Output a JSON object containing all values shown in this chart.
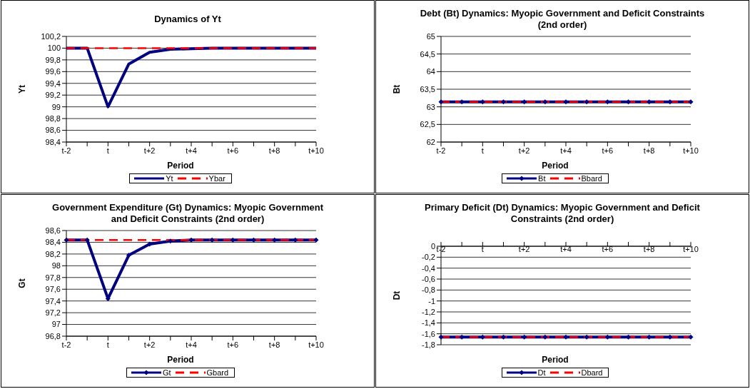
{
  "chart_data": [
    {
      "type": "line",
      "title": "Dynamics of Yt",
      "xlabel": "Period",
      "ylabel": "Yt",
      "categories": [
        "t-2",
        null,
        "t",
        null,
        "t+2",
        null,
        "t+4",
        null,
        "t+6",
        null,
        "t+8",
        null,
        "t+10"
      ],
      "series": [
        {
          "name": "Yt",
          "color": "#000080",
          "values": [
            100,
            100,
            99,
            99.73,
            99.93,
            99.98,
            99.99,
            100,
            100,
            100,
            100,
            100,
            100
          ]
        },
        {
          "name": "Ybar",
          "color": "#ff0000",
          "line_style": "dashed",
          "values": [
            100,
            100,
            100,
            100,
            100,
            100,
            100,
            100,
            100,
            100,
            100,
            100,
            100
          ]
        }
      ],
      "ylim": [
        98.4,
        100.2
      ],
      "yticks": [
        {
          "value": 98.4,
          "label": "98,4"
        },
        {
          "value": 98.6,
          "label": "98,6"
        },
        {
          "value": 98.8,
          "label": "98,8"
        },
        99,
        {
          "value": 99.2,
          "label": "99,2"
        },
        {
          "value": 99.4,
          "label": "99,4"
        },
        {
          "value": 99.6,
          "label": "99,6"
        },
        {
          "value": 99.8,
          "label": "99,8"
        },
        100,
        {
          "value": 100.2,
          "label": "100,2"
        }
      ],
      "grid": "y",
      "legend": "bottom"
    },
    {
      "type": "line",
      "title": "Debt (Bt) Dynamics: Myopic Government and Deficit Constraints (2nd order)",
      "xlabel": "Period",
      "ylabel": "Bt",
      "categories": [
        "t-2",
        null,
        "t",
        null,
        "t+2",
        null,
        "t+4",
        null,
        "t+6",
        null,
        "t+8",
        null,
        "t+10"
      ],
      "series": [
        {
          "name": "Bt",
          "color": "#000080",
          "marker": "diamond",
          "values": [
            63.14,
            63.14,
            63.14,
            63.14,
            63.14,
            63.14,
            63.14,
            63.14,
            63.14,
            63.14,
            63.14,
            63.14,
            63.14
          ]
        },
        {
          "name": "Bbard",
          "color": "#ff0000",
          "line_style": "dashed",
          "values": [
            63.14,
            63.14,
            63.14,
            63.14,
            63.14,
            63.14,
            63.14,
            63.14,
            63.14,
            63.14,
            63.14,
            63.14,
            63.14
          ]
        }
      ],
      "ylim": [
        62,
        65
      ],
      "yticks": [
        62,
        {
          "value": 62.5,
          "label": "62,5"
        },
        63,
        {
          "value": 63.5,
          "label": "63,5"
        },
        64,
        {
          "value": 64.5,
          "label": "64,5"
        },
        65
      ],
      "grid": "y",
      "legend": "bottom"
    },
    {
      "type": "line",
      "title": "Government Expenditure (Gt) Dynamics: Myopic Government and Deficit Constraints (2nd order)",
      "xlabel": "Period",
      "ylabel": "Gt",
      "categories": [
        "t-2",
        null,
        "t",
        null,
        "t+2",
        null,
        "t+4",
        null,
        "t+6",
        null,
        "t+8",
        null,
        "t+10"
      ],
      "series": [
        {
          "name": "Gt",
          "color": "#000080",
          "marker": "diamond",
          "values": [
            98.44,
            98.44,
            97.44,
            98.18,
            98.37,
            98.42,
            98.44,
            98.44,
            98.44,
            98.44,
            98.44,
            98.44,
            98.44
          ]
        },
        {
          "name": "Gbard",
          "color": "#ff0000",
          "line_style": "dashed",
          "values": [
            98.44,
            98.44,
            98.44,
            98.44,
            98.44,
            98.44,
            98.44,
            98.44,
            98.44,
            98.44,
            98.44,
            98.44,
            98.44
          ]
        }
      ],
      "ylim": [
        96.8,
        98.6
      ],
      "yticks": [
        {
          "value": 96.8,
          "label": "96,8"
        },
        97,
        {
          "value": 97.2,
          "label": "97,2"
        },
        {
          "value": 97.4,
          "label": "97,4"
        },
        {
          "value": 97.6,
          "label": "97,6"
        },
        {
          "value": 97.8,
          "label": "97,8"
        },
        98,
        {
          "value": 98.2,
          "label": "98,2"
        },
        {
          "value": 98.4,
          "label": "98,4"
        },
        {
          "value": 98.6,
          "label": "98,6"
        }
      ],
      "grid": "y",
      "legend": "bottom"
    },
    {
      "type": "line",
      "title": "Primary Deficit (Dt) Dynamics: Myopic Government and Deficit Constraints (2nd order)",
      "xlabel": "Period",
      "ylabel": "Dt",
      "categories": [
        "t-2",
        null,
        "t",
        null,
        "t+2",
        null,
        "t+4",
        null,
        "t+6",
        null,
        "t+8",
        null,
        "t+10"
      ],
      "series": [
        {
          "name": "Dt",
          "color": "#000080",
          "marker": "diamond",
          "values": [
            -1.66,
            -1.66,
            -1.66,
            -1.66,
            -1.66,
            -1.66,
            -1.66,
            -1.66,
            -1.66,
            -1.66,
            -1.66,
            -1.66,
            -1.66
          ]
        },
        {
          "name": "Dbard",
          "color": "#ff0000",
          "line_style": "dashed",
          "values": [
            -1.66,
            -1.66,
            -1.66,
            -1.66,
            -1.66,
            -1.66,
            -1.66,
            -1.66,
            -1.66,
            -1.66,
            -1.66,
            -1.66,
            -1.66
          ]
        }
      ],
      "ylim": [
        -1.8,
        0
      ],
      "yticks": [
        {
          "value": -1.8,
          "label": "-1,8"
        },
        {
          "value": -1.6,
          "label": "-1,6"
        },
        {
          "value": -1.4,
          "label": "-1,4"
        },
        {
          "value": -1.2,
          "label": "-1,2"
        },
        -1,
        {
          "value": -0.8,
          "label": "-0,8"
        },
        {
          "value": -0.6,
          "label": "-0,6"
        },
        {
          "value": -0.4,
          "label": "-0,4"
        },
        {
          "value": -0.2,
          "label": "-0,2"
        },
        0
      ],
      "grid": "y",
      "legend": "bottom"
    }
  ]
}
